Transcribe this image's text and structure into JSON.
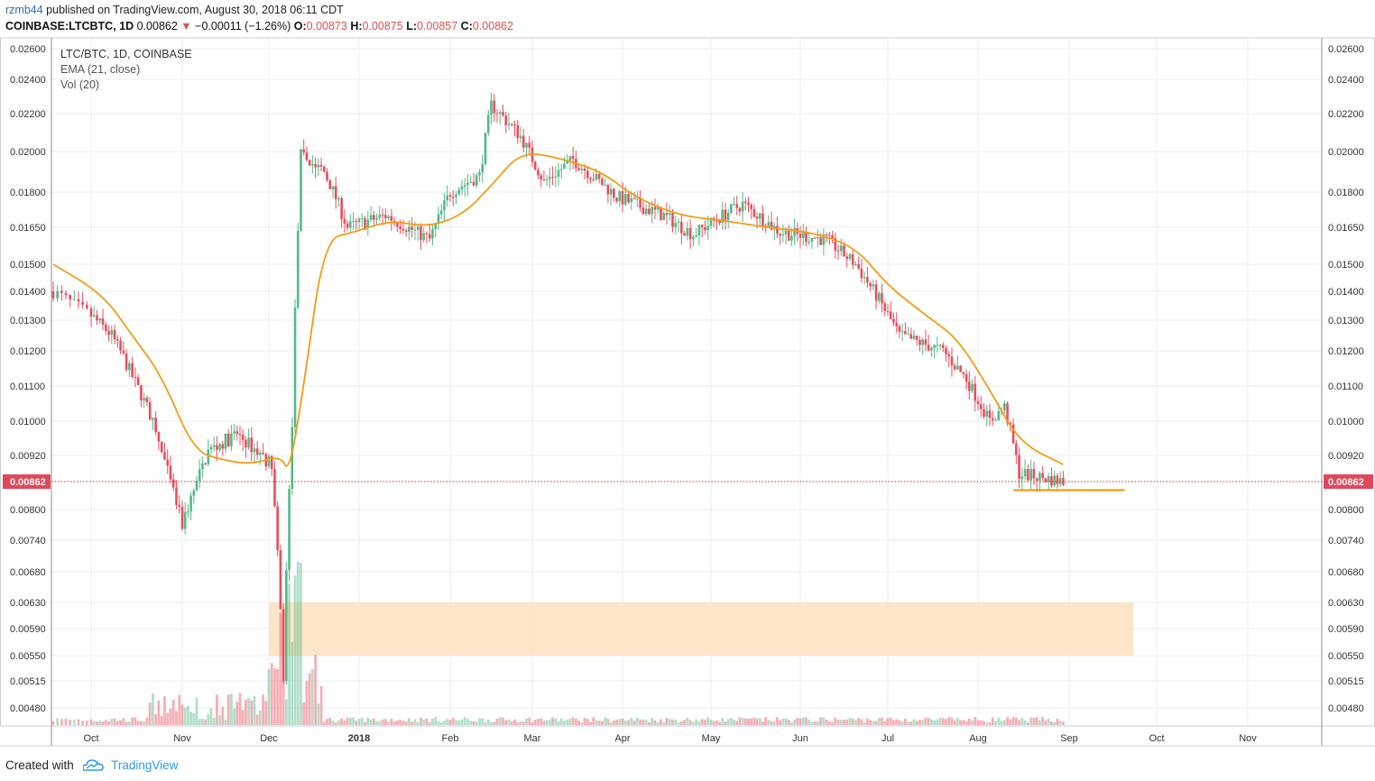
{
  "header": {
    "author": "rzmb44",
    "published_text": "published on TradingView.com, August 30, 2018 06:11 CDT",
    "symbol": "COINBASE:LTCBTC, 1D",
    "last": "0.00862",
    "change": "−0.00011 (−1.26%)",
    "o_label": "O:",
    "o": "0.00873",
    "h_label": "H:",
    "h": "0.00875",
    "l_label": "L:",
    "l": "0.00857",
    "c_label": "C:",
    "c": "0.00862"
  },
  "legend": {
    "title": "LTC/BTC, 1D, COINBASE",
    "ema": "EMA (21, close)",
    "vol": "Vol (20)"
  },
  "footer": {
    "created_with": "Created with",
    "brand": "TradingView"
  },
  "colors": {
    "up": "#53b987",
    "down": "#eb4d5c",
    "ema": "#f39c12",
    "zone": "#fde2bd",
    "price_tag": "#e0485a",
    "grid": "#e9eef3"
  },
  "chart_data": {
    "type": "candlestick",
    "price_label": "0.00862",
    "y_ticks": [
      "0.02600",
      "0.02400",
      "0.02200",
      "0.02000",
      "0.01800",
      "0.01650",
      "0.01500",
      "0.01400",
      "0.01300",
      "0.01200",
      "0.01100",
      "0.01000",
      "0.00920",
      "0.00800",
      "0.00740",
      "0.00680",
      "0.00630",
      "0.00590",
      "0.00550",
      "0.00515",
      "0.00480"
    ],
    "x_labels": [
      "Oct",
      "Nov",
      "Dec",
      "2018",
      "Feb",
      "Mar",
      "Apr",
      "May",
      "Jun",
      "Jul",
      "Aug",
      "Sep",
      "Oct",
      "Nov"
    ],
    "ema_points": [
      [
        "2017-09-22",
        0.015
      ],
      [
        "2017-10-05",
        0.0139
      ],
      [
        "2017-10-15",
        0.0125
      ],
      [
        "2017-10-25",
        0.0113
      ],
      [
        "2017-11-05",
        0.0093
      ],
      [
        "2017-11-15",
        0.0091
      ],
      [
        "2017-11-25",
        0.009
      ],
      [
        "2017-12-05",
        0.0092
      ],
      [
        "2017-12-08",
        0.0088
      ],
      [
        "2017-12-13",
        0.011
      ],
      [
        "2017-12-20",
        0.016
      ],
      [
        "2017-12-30",
        0.0163
      ],
      [
        "2018-01-12",
        0.0168
      ],
      [
        "2018-01-24",
        0.0165
      ],
      [
        "2018-02-05",
        0.017
      ],
      [
        "2018-02-15",
        0.0183
      ],
      [
        "2018-02-25",
        0.02
      ],
      [
        "2018-03-10",
        0.0197
      ],
      [
        "2018-03-25",
        0.019
      ],
      [
        "2018-04-05",
        0.0178
      ],
      [
        "2018-04-20",
        0.017
      ],
      [
        "2018-05-05",
        0.0168
      ],
      [
        "2018-05-20",
        0.0165
      ],
      [
        "2018-06-05",
        0.0163
      ],
      [
        "2018-06-20",
        0.0157
      ],
      [
        "2018-07-01",
        0.0142
      ],
      [
        "2018-07-15",
        0.0131
      ],
      [
        "2018-07-25",
        0.0124
      ],
      [
        "2018-08-05",
        0.0109
      ],
      [
        "2018-08-15",
        0.0095
      ],
      [
        "2018-08-30",
        0.009
      ]
    ],
    "support_line": {
      "start": "2018-08-13",
      "end": "2018-09-20",
      "value": 0.00843
    },
    "zone": {
      "start": "2017-12-01",
      "end": "2018-09-23",
      "low": 0.0055,
      "high": 0.0063
    }
  }
}
